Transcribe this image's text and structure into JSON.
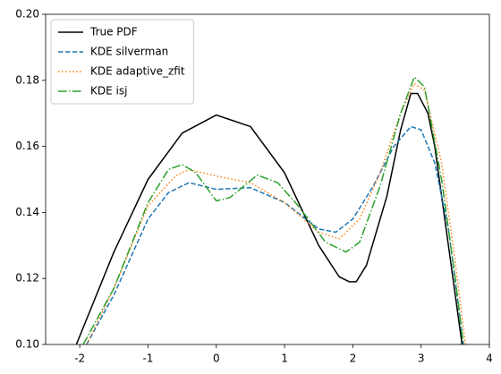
{
  "chart_data": {
    "type": "line",
    "xlim": [
      -2.5,
      4
    ],
    "xticks": [
      -2,
      -1,
      0,
      1,
      2,
      3,
      4
    ],
    "ylim": [
      0.1,
      0.2
    ],
    "yticks": [
      {
        "value": 0.1,
        "label": "0.10"
      },
      0.12,
      0.14,
      0.16,
      0.18,
      {
        "value": 0.2,
        "label": "0.20"
      }
    ],
    "legend": "upper left",
    "series": [
      {
        "name": "True PDF",
        "color": "#000000",
        "linestyle": "solid",
        "x": [
          -2.05,
          -1.5,
          -1,
          -0.5,
          0,
          0.5,
          1,
          1.5,
          1.8,
          1.95,
          2.05,
          2.2,
          2.5,
          2.7,
          2.85,
          2.95,
          3.1,
          3.2,
          3.4,
          3.6
        ],
        "values": [
          0.1,
          0.128,
          0.15,
          0.164,
          0.1695,
          0.166,
          0.152,
          0.13,
          0.1205,
          0.119,
          0.119,
          0.124,
          0.145,
          0.165,
          0.176,
          0.176,
          0.17,
          0.16,
          0.13,
          0.1
        ]
      },
      {
        "name": "KDE silverman",
        "color": "#1f77b4",
        "linestyle": "dashed",
        "x": [
          -1.9,
          -1.5,
          -1,
          -0.7,
          -0.4,
          0,
          0.5,
          1,
          1.5,
          1.75,
          2,
          2.3,
          2.6,
          2.85,
          3.0,
          3.2,
          3.4,
          3.62
        ],
        "values": [
          0.1,
          0.115,
          0.138,
          0.146,
          0.149,
          0.147,
          0.1475,
          0.143,
          0.135,
          0.134,
          0.138,
          0.148,
          0.16,
          0.166,
          0.165,
          0.155,
          0.135,
          0.1
        ]
      },
      {
        "name": "KDE adaptive_zfit",
        "color": "#ff7f0e",
        "linestyle": "dotted",
        "x": [
          -1.9,
          -1.5,
          -1,
          -0.6,
          -0.4,
          0,
          0.5,
          1,
          1.5,
          1.8,
          2.1,
          2.4,
          2.7,
          2.9,
          3.05,
          3.3,
          3.5,
          3.65
        ],
        "values": [
          0.1,
          0.117,
          0.142,
          0.151,
          0.153,
          0.151,
          0.149,
          0.143,
          0.134,
          0.132,
          0.138,
          0.152,
          0.17,
          0.179,
          0.177,
          0.155,
          0.125,
          0.1
        ]
      },
      {
        "name": "KDE isj",
        "color": "#2ca02c",
        "linestyle": "dashdot",
        "x": [
          -1.95,
          -1.5,
          -1,
          -0.7,
          -0.5,
          -0.3,
          0,
          0.2,
          0.6,
          0.9,
          1.2,
          1.6,
          1.9,
          2.1,
          2.4,
          2.7,
          2.9,
          3.05,
          3.3,
          3.5,
          3.62
        ],
        "values": [
          0.1,
          0.117,
          0.143,
          0.153,
          0.1545,
          0.152,
          0.1435,
          0.1445,
          0.1513,
          0.149,
          0.142,
          0.131,
          0.128,
          0.131,
          0.148,
          0.17,
          0.181,
          0.178,
          0.15,
          0.12,
          0.1
        ]
      }
    ]
  }
}
